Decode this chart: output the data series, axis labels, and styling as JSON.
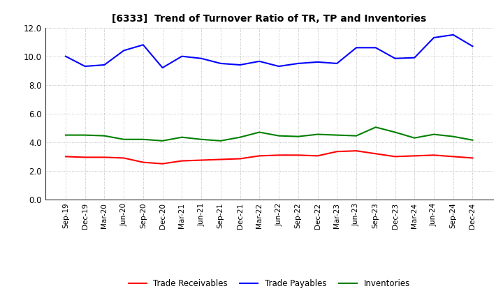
{
  "title": "[6333]  Trend of Turnover Ratio of TR, TP and Inventories",
  "xlabels": [
    "Sep-19",
    "Dec-19",
    "Mar-20",
    "Jun-20",
    "Sep-20",
    "Dec-20",
    "Mar-21",
    "Jun-21",
    "Sep-21",
    "Dec-21",
    "Mar-22",
    "Jun-22",
    "Sep-22",
    "Dec-22",
    "Mar-23",
    "Jun-23",
    "Sep-23",
    "Dec-23",
    "Mar-24",
    "Jun-24",
    "Sep-24",
    "Dec-24"
  ],
  "trade_receivables": [
    3.0,
    2.95,
    2.95,
    2.9,
    2.6,
    2.5,
    2.7,
    2.75,
    2.8,
    2.85,
    3.05,
    3.1,
    3.1,
    3.05,
    3.35,
    3.4,
    3.2,
    3.0,
    3.05,
    3.1,
    3.0,
    2.9
  ],
  "trade_payables": [
    10.0,
    9.3,
    9.4,
    10.4,
    10.8,
    9.2,
    10.0,
    9.85,
    9.5,
    9.4,
    9.65,
    9.3,
    9.5,
    9.6,
    9.5,
    10.6,
    10.6,
    9.85,
    9.9,
    11.3,
    11.5,
    10.7
  ],
  "inventories": [
    4.5,
    4.5,
    4.45,
    4.2,
    4.2,
    4.1,
    4.35,
    4.2,
    4.1,
    4.35,
    4.7,
    4.45,
    4.4,
    4.55,
    4.5,
    4.45,
    5.05,
    4.7,
    4.3,
    4.55,
    4.4,
    4.15
  ],
  "ylim": [
    0.0,
    12.0
  ],
  "yticks": [
    0.0,
    2.0,
    4.0,
    6.0,
    8.0,
    10.0,
    12.0
  ],
  "color_tr": "#ff0000",
  "color_tp": "#0000ff",
  "color_inv": "#008000",
  "legend_labels": [
    "Trade Receivables",
    "Trade Payables",
    "Inventories"
  ],
  "background_color": "#ffffff",
  "grid_color": "#b0b0b0"
}
